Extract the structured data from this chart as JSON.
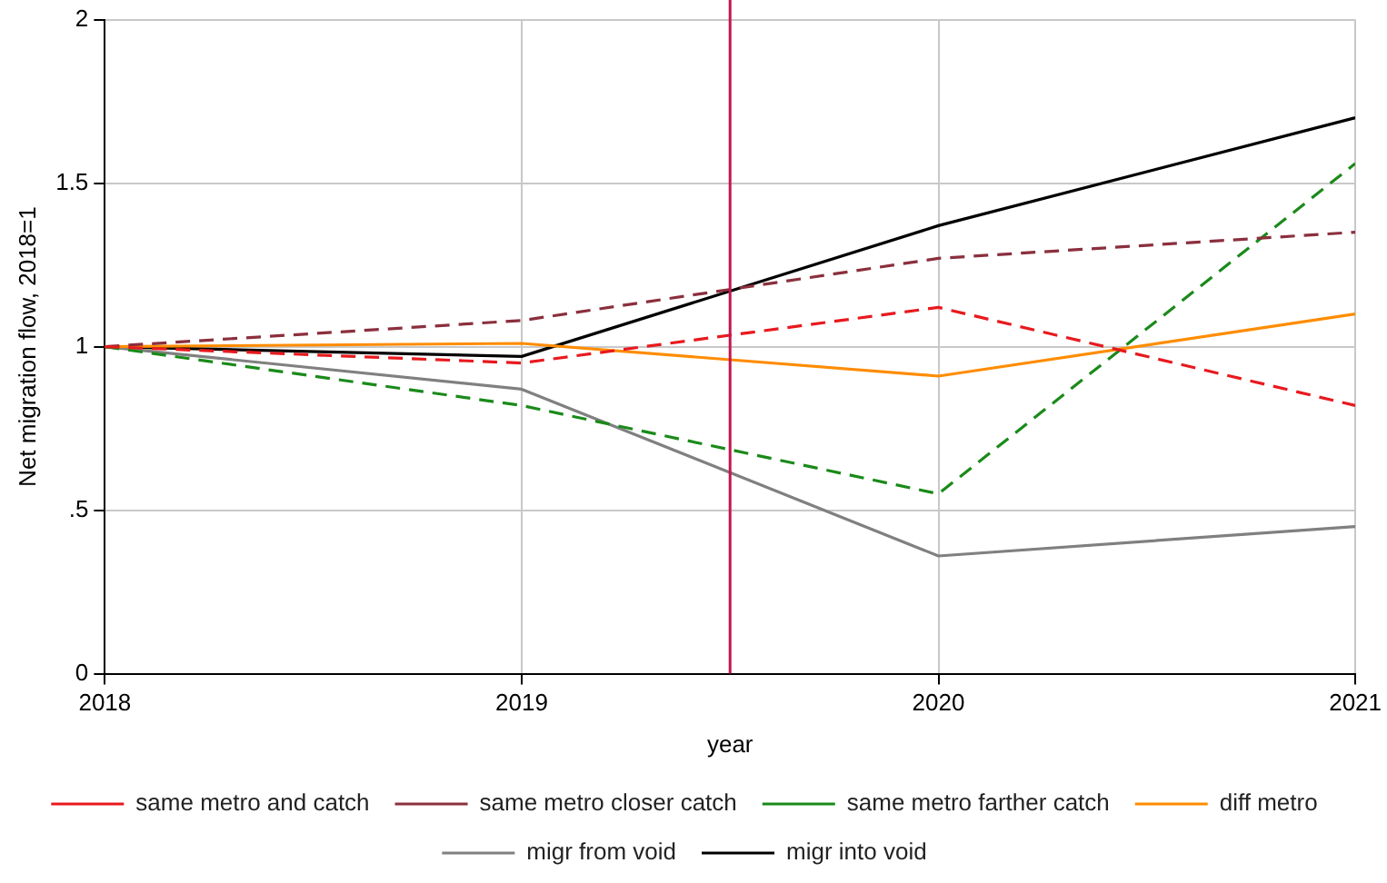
{
  "chart_data": {
    "type": "line",
    "xlabel": "year",
    "ylabel": "Net migration flow, 2018=1",
    "x": [
      2018,
      2019,
      2020,
      2021
    ],
    "series": [
      {
        "name": "same metro and catch",
        "color": "#e8191e",
        "line_style": "dashed",
        "values": [
          1,
          0.95,
          1.12,
          0.82
        ]
      },
      {
        "name": "same metro closer catch",
        "color": "#8b2f3d",
        "line_style": "dashed",
        "values": [
          1,
          1.08,
          1.27,
          1.35
        ]
      },
      {
        "name": "same metro farther catch",
        "color": "#1a8a1a",
        "line_style": "dashed",
        "values": [
          1,
          0.82,
          0.55,
          1.56
        ]
      },
      {
        "name": "diff metro",
        "color": "#ff8c00",
        "line_style": "solid",
        "values": [
          1,
          1.01,
          0.91,
          1.1
        ]
      },
      {
        "name": "migr from void",
        "color": "#808080",
        "line_style": "solid",
        "values": [
          1,
          0.87,
          0.36,
          0.45
        ]
      },
      {
        "name": "migr into void",
        "color": "#000000",
        "line_style": "solid",
        "values": [
          1,
          0.97,
          1.37,
          1.7
        ]
      }
    ],
    "xlim": [
      2018,
      2021
    ],
    "xticks": [
      2018,
      2019,
      2020,
      2021
    ],
    "ylim": [
      0,
      2
    ],
    "yticks": [
      0,
      {
        "value": 0.5,
        "label": ".5"
      },
      1,
      1.5,
      2
    ],
    "ref_lines": [
      {
        "axis": "x",
        "value": 2019.5,
        "color": "#c4164f"
      }
    ],
    "grid": true,
    "legend": "bottom",
    "marker": "none"
  }
}
